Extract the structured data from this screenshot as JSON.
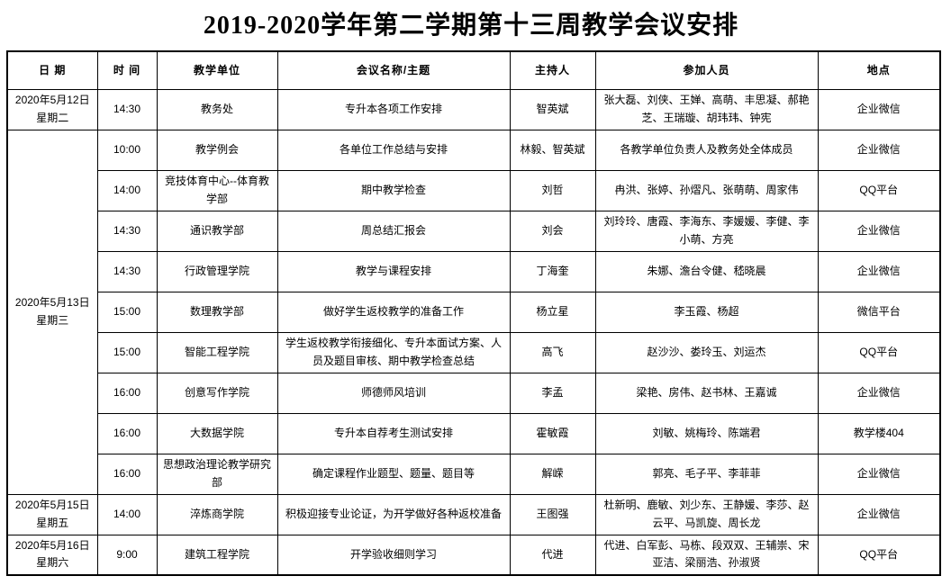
{
  "title": "2019-2020学年第二学期第十三周教学会议安排",
  "table": {
    "headers": [
      "日 期",
      "时 间",
      "教学单位",
      "会议名称/主题",
      "主持人",
      "参加人员",
      "地点"
    ],
    "date_groups": [
      {
        "date": "2020年5月12日\n星期二",
        "rowspan": 1
      },
      {
        "date": "2020年5月13日\n星期三",
        "rowspan": 9
      },
      {
        "date": "2020年5月15日\n星期五",
        "rowspan": 1
      },
      {
        "date": "2020年5月16日\n星期六",
        "rowspan": 1
      }
    ],
    "rows": [
      {
        "time": "14:30",
        "unit": "教务处",
        "topic": "专升本各项工作安排",
        "host": "智英斌",
        "participants": "张大磊、刘侠、王婵、高萌、丰思凝、郝艳芝、王瑞璇、胡玮玮、钟宪",
        "location": "企业微信"
      },
      {
        "time": "10:00",
        "unit": "教学例会",
        "topic": "各单位工作总结与安排",
        "host": "林毅、智英斌",
        "participants": "各教学单位负责人及教务处全体成员",
        "location": "企业微信"
      },
      {
        "time": "14:00",
        "unit": "竞技体育中心--体育教学部",
        "topic": "期中教学检查",
        "host": "刘哲",
        "participants": "冉洪、张婷、孙熠凡、张萌萌、周家伟",
        "location": "QQ平台"
      },
      {
        "time": "14:30",
        "unit": "通识教学部",
        "topic": "周总结汇报会",
        "host": "刘会",
        "participants": "刘玲玲、唐霞、李海东、李媛媛、李健、李小萌、方亮",
        "location": "企业微信"
      },
      {
        "time": "14:30",
        "unit": "行政管理学院",
        "topic": "教学与课程安排",
        "host": "丁海奎",
        "participants": "朱娜、澹台令健、嵇晓晨",
        "location": "企业微信"
      },
      {
        "time": "15:00",
        "unit": "数理教学部",
        "topic": "做好学生返校教学的准备工作",
        "host": "杨立星",
        "participants": "李玉霞、杨超",
        "location": "微信平台"
      },
      {
        "time": "15:00",
        "unit": "智能工程学院",
        "topic": "学生返校教学衔接细化、专升本面试方案、人员及题目审核、期中教学检查总结",
        "host": "高飞",
        "participants": "赵沙沙、娄玲玉、刘运杰",
        "location": "QQ平台"
      },
      {
        "time": "16:00",
        "unit": "创意写作学院",
        "topic": "师德师风培训",
        "host": "李孟",
        "participants": "梁艳、房伟、赵书林、王嘉诚",
        "location": "企业微信"
      },
      {
        "time": "16:00",
        "unit": "大数据学院",
        "topic": "专升本自荐考生测试安排",
        "host": "霍敏霞",
        "participants": "刘敏、姚梅玲、陈端君",
        "location": "教学楼404"
      },
      {
        "time": "16:00",
        "unit": "思想政治理论教学研究部",
        "topic": "确定课程作业题型、题量、题目等",
        "host": "解嵘",
        "participants": "郭亮、毛子平、李菲菲",
        "location": "企业微信"
      },
      {
        "time": "14:00",
        "unit": "淬炼商学院",
        "topic": "积极迎接专业论证，为开学做好各种返校准备",
        "host": "王图强",
        "participants": "杜新明、鹿敏、刘少东、王静媛、李莎、赵云平、马凯旋、周长龙",
        "location": "企业微信"
      },
      {
        "time": "9:00",
        "unit": "建筑工程学院",
        "topic": "开学验收细则学习",
        "host": "代进",
        "participants": "代进、白军彭、马栋、段双双、王辅崇、宋亚洁、梁丽浩、孙淑贤",
        "location": "QQ平台"
      }
    ]
  }
}
